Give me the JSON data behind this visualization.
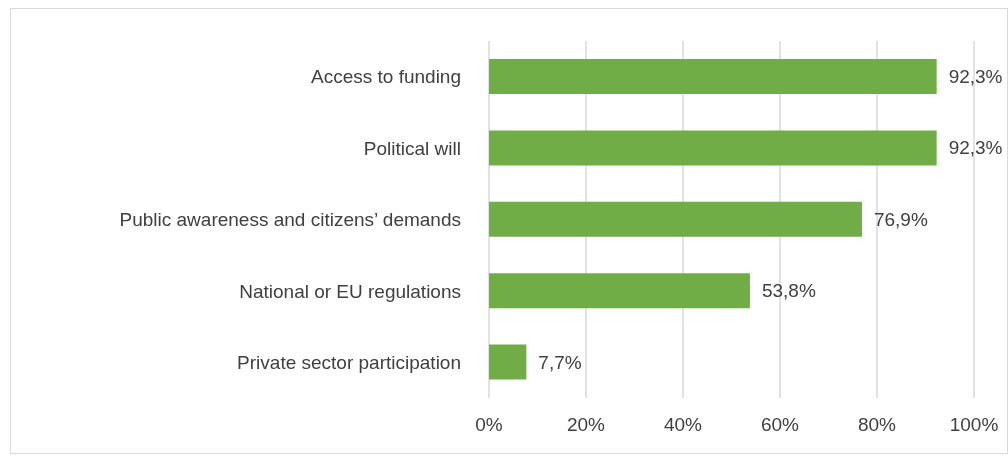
{
  "chart_data": {
    "type": "bar",
    "orientation": "horizontal",
    "categories": [
      "Access to funding",
      "Political will",
      "Public awareness and citizens’ demands",
      "National or EU regulations",
      "Private sector participation"
    ],
    "values": [
      92.3,
      92.3,
      76.9,
      53.8,
      7.7
    ],
    "value_labels": [
      "92,3%",
      "92,3%",
      "76,9%",
      "53,8%",
      "7,7%"
    ],
    "color": "#70ad47",
    "xlim": [
      0,
      100
    ],
    "xticks": [
      {
        "value": 0,
        "label": "0%"
      },
      {
        "value": 20,
        "label": "20%"
      },
      {
        "value": 40,
        "label": "40%"
      },
      {
        "value": 60,
        "label": "60%"
      },
      {
        "value": 80,
        "label": "80%"
      },
      {
        "value": 100,
        "label": "100%"
      }
    ],
    "grid": "x"
  }
}
